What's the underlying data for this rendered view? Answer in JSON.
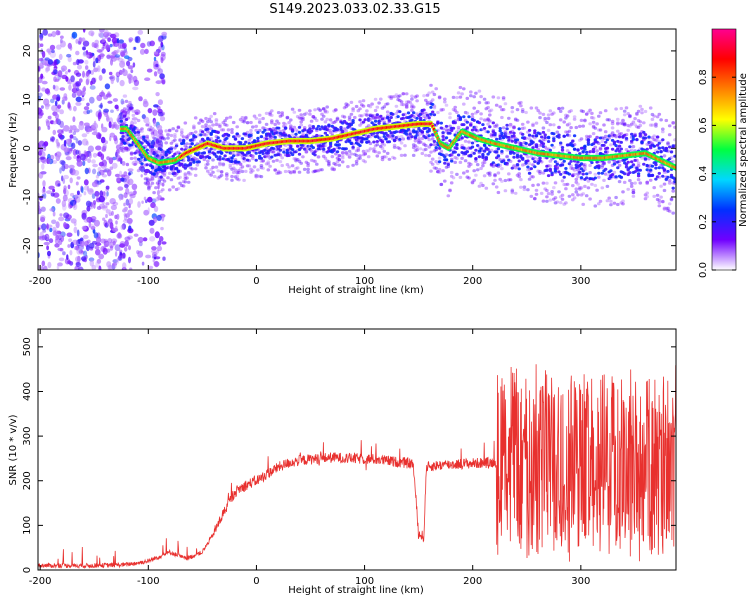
{
  "title": "S149.2023.033.02.33.G15",
  "chart_data": [
    {
      "type": "heatmap",
      "xlabel": "Height of straight line (km)",
      "ylabel": "Frequency (Hz)",
      "xlim": [
        -202,
        388
      ],
      "ylim": [
        -25,
        24.5
      ],
      "xticks": [
        -200,
        -100,
        0,
        100,
        200,
        300
      ],
      "yticks": [
        -20,
        -10,
        0,
        10,
        20
      ],
      "colorbar": {
        "label": "Normalized spectral amplitude",
        "range": [
          0.0,
          1.0
        ],
        "ticks": [
          0.0,
          0.2,
          0.4,
          0.6,
          0.8
        ],
        "colors": [
          "#ffffff",
          "#7000ff",
          "#0030ff",
          "#00d8ff",
          "#00ff40",
          "#ffff00",
          "#ff8000",
          "#ff0000",
          "#ff0090"
        ]
      },
      "ridge": {
        "x": [
          -120,
          -100,
          -90,
          -75,
          -65,
          -55,
          -45,
          -30,
          -10,
          10,
          30,
          50,
          70,
          90,
          110,
          130,
          150,
          162,
          170,
          178,
          190,
          205,
          220,
          240,
          260,
          280,
          300,
          320,
          340,
          360,
          388
        ],
        "freq": [
          4,
          -2,
          -3,
          -2.5,
          -1,
          0,
          1,
          0,
          0,
          1,
          1.5,
          1.5,
          2,
          3,
          4,
          4.5,
          5,
          5,
          1,
          0,
          3.5,
          2,
          1,
          0,
          -1,
          -1.5,
          -2,
          -2,
          -1.5,
          -1,
          -4
        ]
      },
      "noise_region_x": [
        -202,
        -85
      ]
    },
    {
      "type": "line",
      "xlabel": "Height of straight line (km)",
      "ylabel": "SNR (10 * v/v)",
      "xlim": [
        -202,
        388
      ],
      "ylim": [
        0,
        540
      ],
      "xticks": [
        -200,
        -100,
        0,
        100,
        200,
        300
      ],
      "yticks": [
        0,
        100,
        200,
        300,
        400,
        500
      ],
      "line_color": "#e8302e",
      "envelope": {
        "x": [
          -202,
          -150,
          -120,
          -100,
          -80,
          -65,
          -50,
          -40,
          -30,
          -20,
          -10,
          0,
          10,
          20,
          30,
          40,
          50,
          70,
          90,
          110,
          130,
          145,
          150,
          155,
          157,
          160,
          170,
          190,
          210,
          222,
          225,
          230,
          240,
          260,
          280,
          300,
          320,
          340,
          360,
          388
        ],
        "y": [
          10,
          10,
          12,
          20,
          40,
          25,
          40,
          80,
          130,
          175,
          190,
          200,
          215,
          230,
          240,
          245,
          248,
          252,
          250,
          248,
          242,
          238,
          80,
          75,
          230,
          232,
          235,
          238,
          240,
          242,
          260,
          240,
          250,
          245,
          240,
          245,
          250,
          235,
          220,
          230
        ]
      }
    }
  ]
}
